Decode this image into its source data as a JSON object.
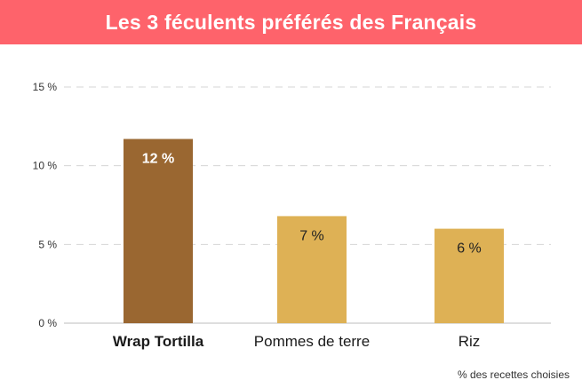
{
  "header": {
    "title": "Les 3 féculents préférés des Français"
  },
  "footnote": "% des recettes choisies",
  "colors": {
    "banner": "#fe636b",
    "highlight_bar": "#9a6731",
    "regular_bar": "#deb155",
    "grid": "#d5d5d5",
    "highlight_label": "#ffffff",
    "regular_label": "#222222"
  },
  "chart_data": {
    "type": "bar",
    "title": "Les 3 féculents préférés des Français",
    "categories": [
      "Wrap Tortilla",
      "Pommes de terre",
      "Riz"
    ],
    "values": [
      11.7,
      6.8,
      6.0
    ],
    "value_labels": [
      "12 %",
      "7 %",
      "6 %"
    ],
    "highlight": [
      true,
      false,
      false
    ],
    "xlabel": "",
    "ylabel": "% des recettes choisies",
    "ylim": [
      0,
      15
    ],
    "yticks": [
      0,
      5,
      10,
      15
    ],
    "ytick_labels": [
      "0 %",
      "5 %",
      "10 %",
      "15 %"
    ],
    "grid": true
  }
}
